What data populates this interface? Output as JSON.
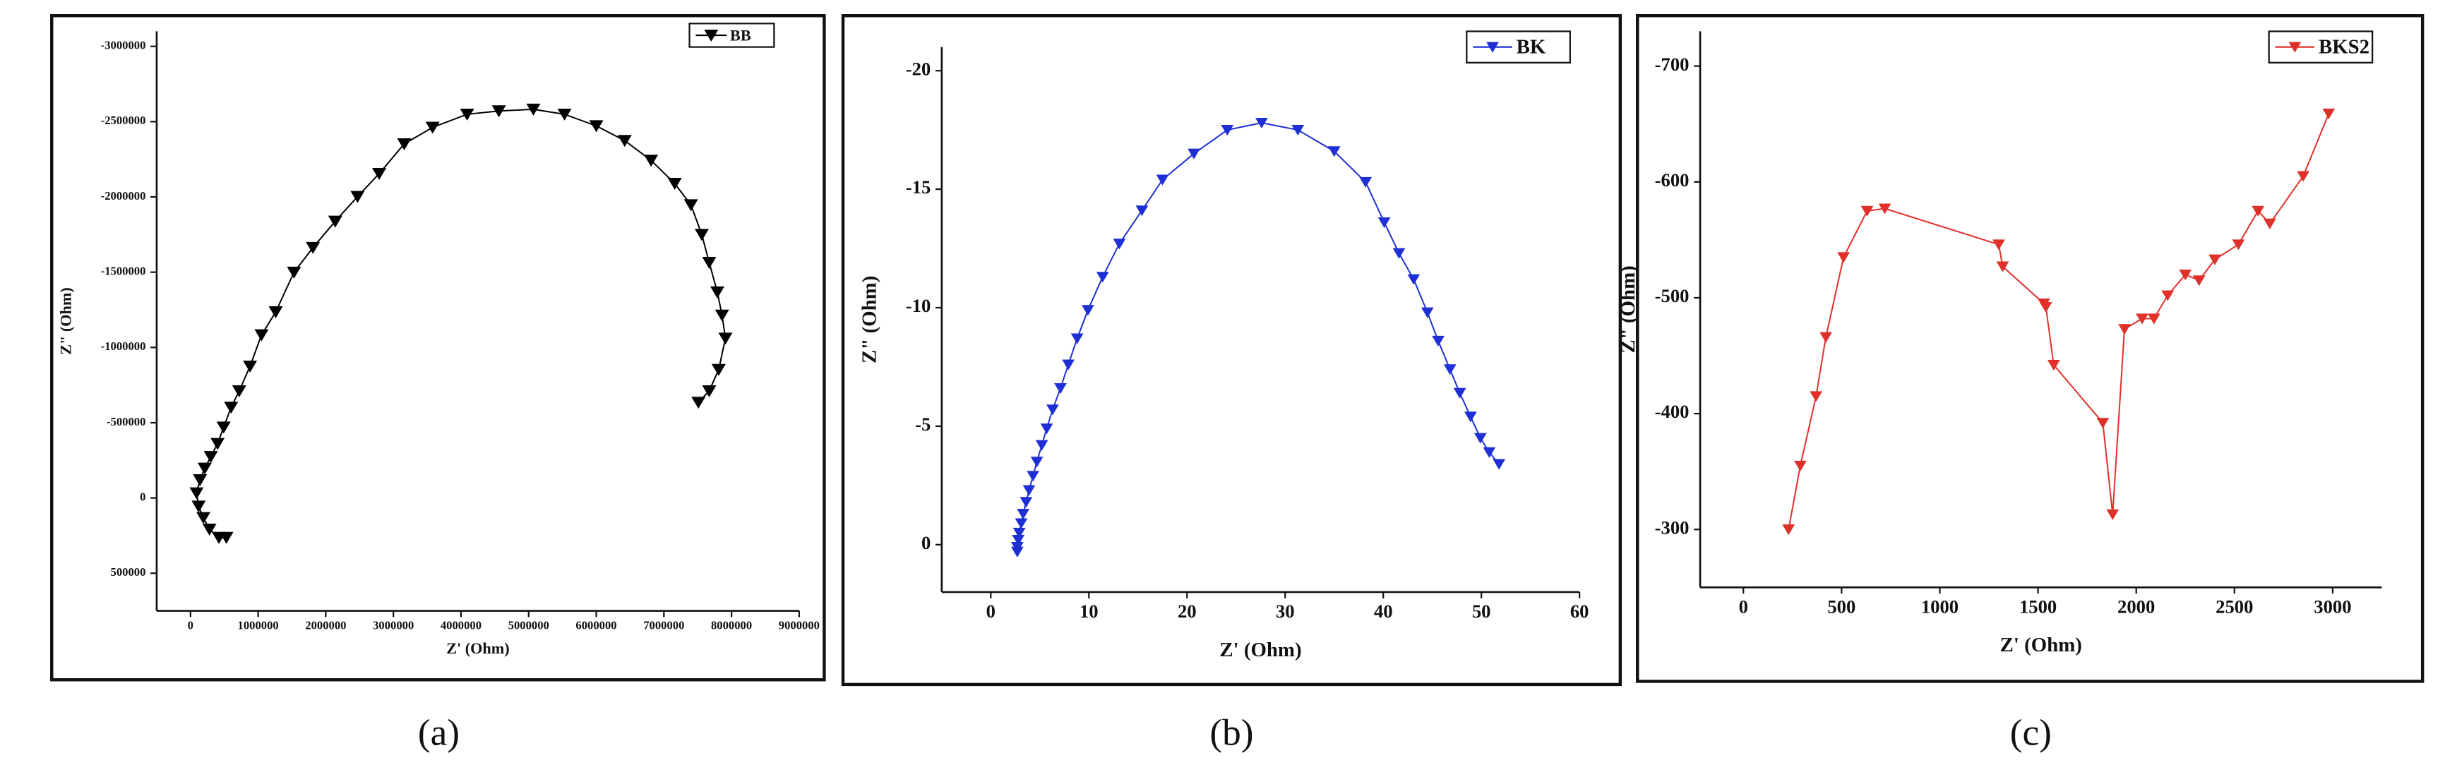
{
  "chart_data": [
    {
      "type": "scatter",
      "caption": "(a)",
      "x_label": "Z' (Ohm)",
      "y_label": "Z\" (Ohm)",
      "xlim": [
        -500000,
        9000000
      ],
      "xticks": [
        0,
        1000000,
        2000000,
        3000000,
        4000000,
        5000000,
        6000000,
        7000000,
        8000000,
        9000000
      ],
      "ylim": [
        750000,
        -3100000
      ],
      "yticks": [
        -3000000,
        -2500000,
        -2000000,
        -1500000,
        -1000000,
        -500000,
        0,
        500000
      ],
      "legend": "upper right",
      "series": [
        {
          "name": "BB",
          "color": "#000000",
          "x": [
            7510000,
            7670000,
            7810000,
            7910000,
            7860000,
            7790000,
            7670000,
            7560000,
            7400000,
            7160000,
            6810000,
            6420000,
            6000000,
            5530000,
            5070000,
            4560000,
            4090000,
            3580000,
            3160000,
            2790000,
            2470000,
            2140000,
            1810000,
            1530000,
            1260000,
            1050000,
            880000,
            720000,
            600000,
            490000,
            400000,
            300000,
            210000,
            140000,
            90000,
            120000,
            190000,
            280000,
            420000,
            530000
          ],
          "values": [
            -635000,
            -711000,
            -853000,
            -1061000,
            -1214000,
            -1368000,
            -1564000,
            -1750000,
            -1947000,
            -2089000,
            -2243000,
            -2374000,
            -2472000,
            -2549000,
            -2582000,
            -2571000,
            -2549000,
            -2462000,
            -2352000,
            -2155000,
            -2002000,
            -1838000,
            -1663000,
            -1499000,
            -1236000,
            -1083000,
            -875000,
            -711000,
            -602000,
            -470000,
            -361000,
            -274000,
            -197000,
            -120000,
            -33000,
            55000,
            131000,
            208000,
            263000,
            263000
          ]
        }
      ]
    },
    {
      "type": "scatter",
      "caption": "(b)",
      "x_label": "Z' (Ohm)",
      "y_label": "Z\" (Ohm)",
      "xlim": [
        -5,
        60
      ],
      "xticks": [
        0,
        10,
        20,
        30,
        40,
        50,
        60
      ],
      "ylim": [
        2,
        -21
      ],
      "yticks": [
        -20,
        -15,
        -10,
        -5,
        0
      ],
      "legend": "upper right",
      "series": [
        {
          "name": "BK",
          "color": "#1f2fd6",
          "x": [
            51.8,
            50.8,
            49.9,
            48.9,
            47.8,
            46.8,
            45.6,
            44.5,
            43.1,
            41.6,
            40.1,
            38.2,
            35,
            31.3,
            27.6,
            24.1,
            20.7,
            17.5,
            15.4,
            13.1,
            11.4,
            9.9,
            8.8,
            7.9,
            7.1,
            6.3,
            5.7,
            5.2,
            4.7,
            4.3,
            3.9,
            3.6,
            3.3,
            3.1,
            2.9,
            2.8,
            2.7,
            2.7
          ],
          "values": [
            -3.4,
            -3.9,
            -4.5,
            -5.4,
            -6.4,
            -7.4,
            -8.6,
            -9.8,
            -11.2,
            -12.3,
            -13.6,
            -15.3,
            -16.6,
            -17.5,
            -17.8,
            -17.5,
            -16.5,
            -15.4,
            -14.1,
            -12.7,
            -11.3,
            -9.9,
            -8.7,
            -7.6,
            -6.6,
            -5.7,
            -4.9,
            -4.2,
            -3.5,
            -2.9,
            -2.3,
            -1.8,
            -1.3,
            -0.9,
            -0.5,
            -0.2,
            0.1,
            0.3
          ]
        }
      ]
    },
    {
      "type": "scatter",
      "caption": "(c)",
      "x_label": "Z' (Ohm)",
      "y_label": "Z\" (Ohm)",
      "xlim": [
        -220,
        3250
      ],
      "xticks": [
        0,
        500,
        1000,
        1500,
        2000,
        2500,
        3000
      ],
      "ylim": [
        -250,
        -730
      ],
      "yticks": [
        -700,
        -600,
        -500,
        -400,
        -300
      ],
      "legend": "upper right",
      "series": [
        {
          "name": "BKS2",
          "color": "#e0302a",
          "x": [
            230,
            290,
            370,
            420,
            510,
            630,
            720,
            1300,
            1320,
            1530,
            1540,
            1580,
            1830,
            1880,
            1940,
            2030,
            2090,
            2160,
            2250,
            2320,
            2400,
            2520,
            2620,
            2680,
            2850,
            2980
          ],
          "values": [
            -300,
            -355,
            -415,
            -466,
            -535,
            -575,
            -577,
            -546,
            -527,
            -495,
            -492,
            -442,
            -392,
            -313,
            -473,
            -482,
            -482,
            -502,
            -520,
            -515,
            -533,
            -546,
            -575,
            -564,
            -605,
            -659
          ]
        }
      ]
    }
  ]
}
